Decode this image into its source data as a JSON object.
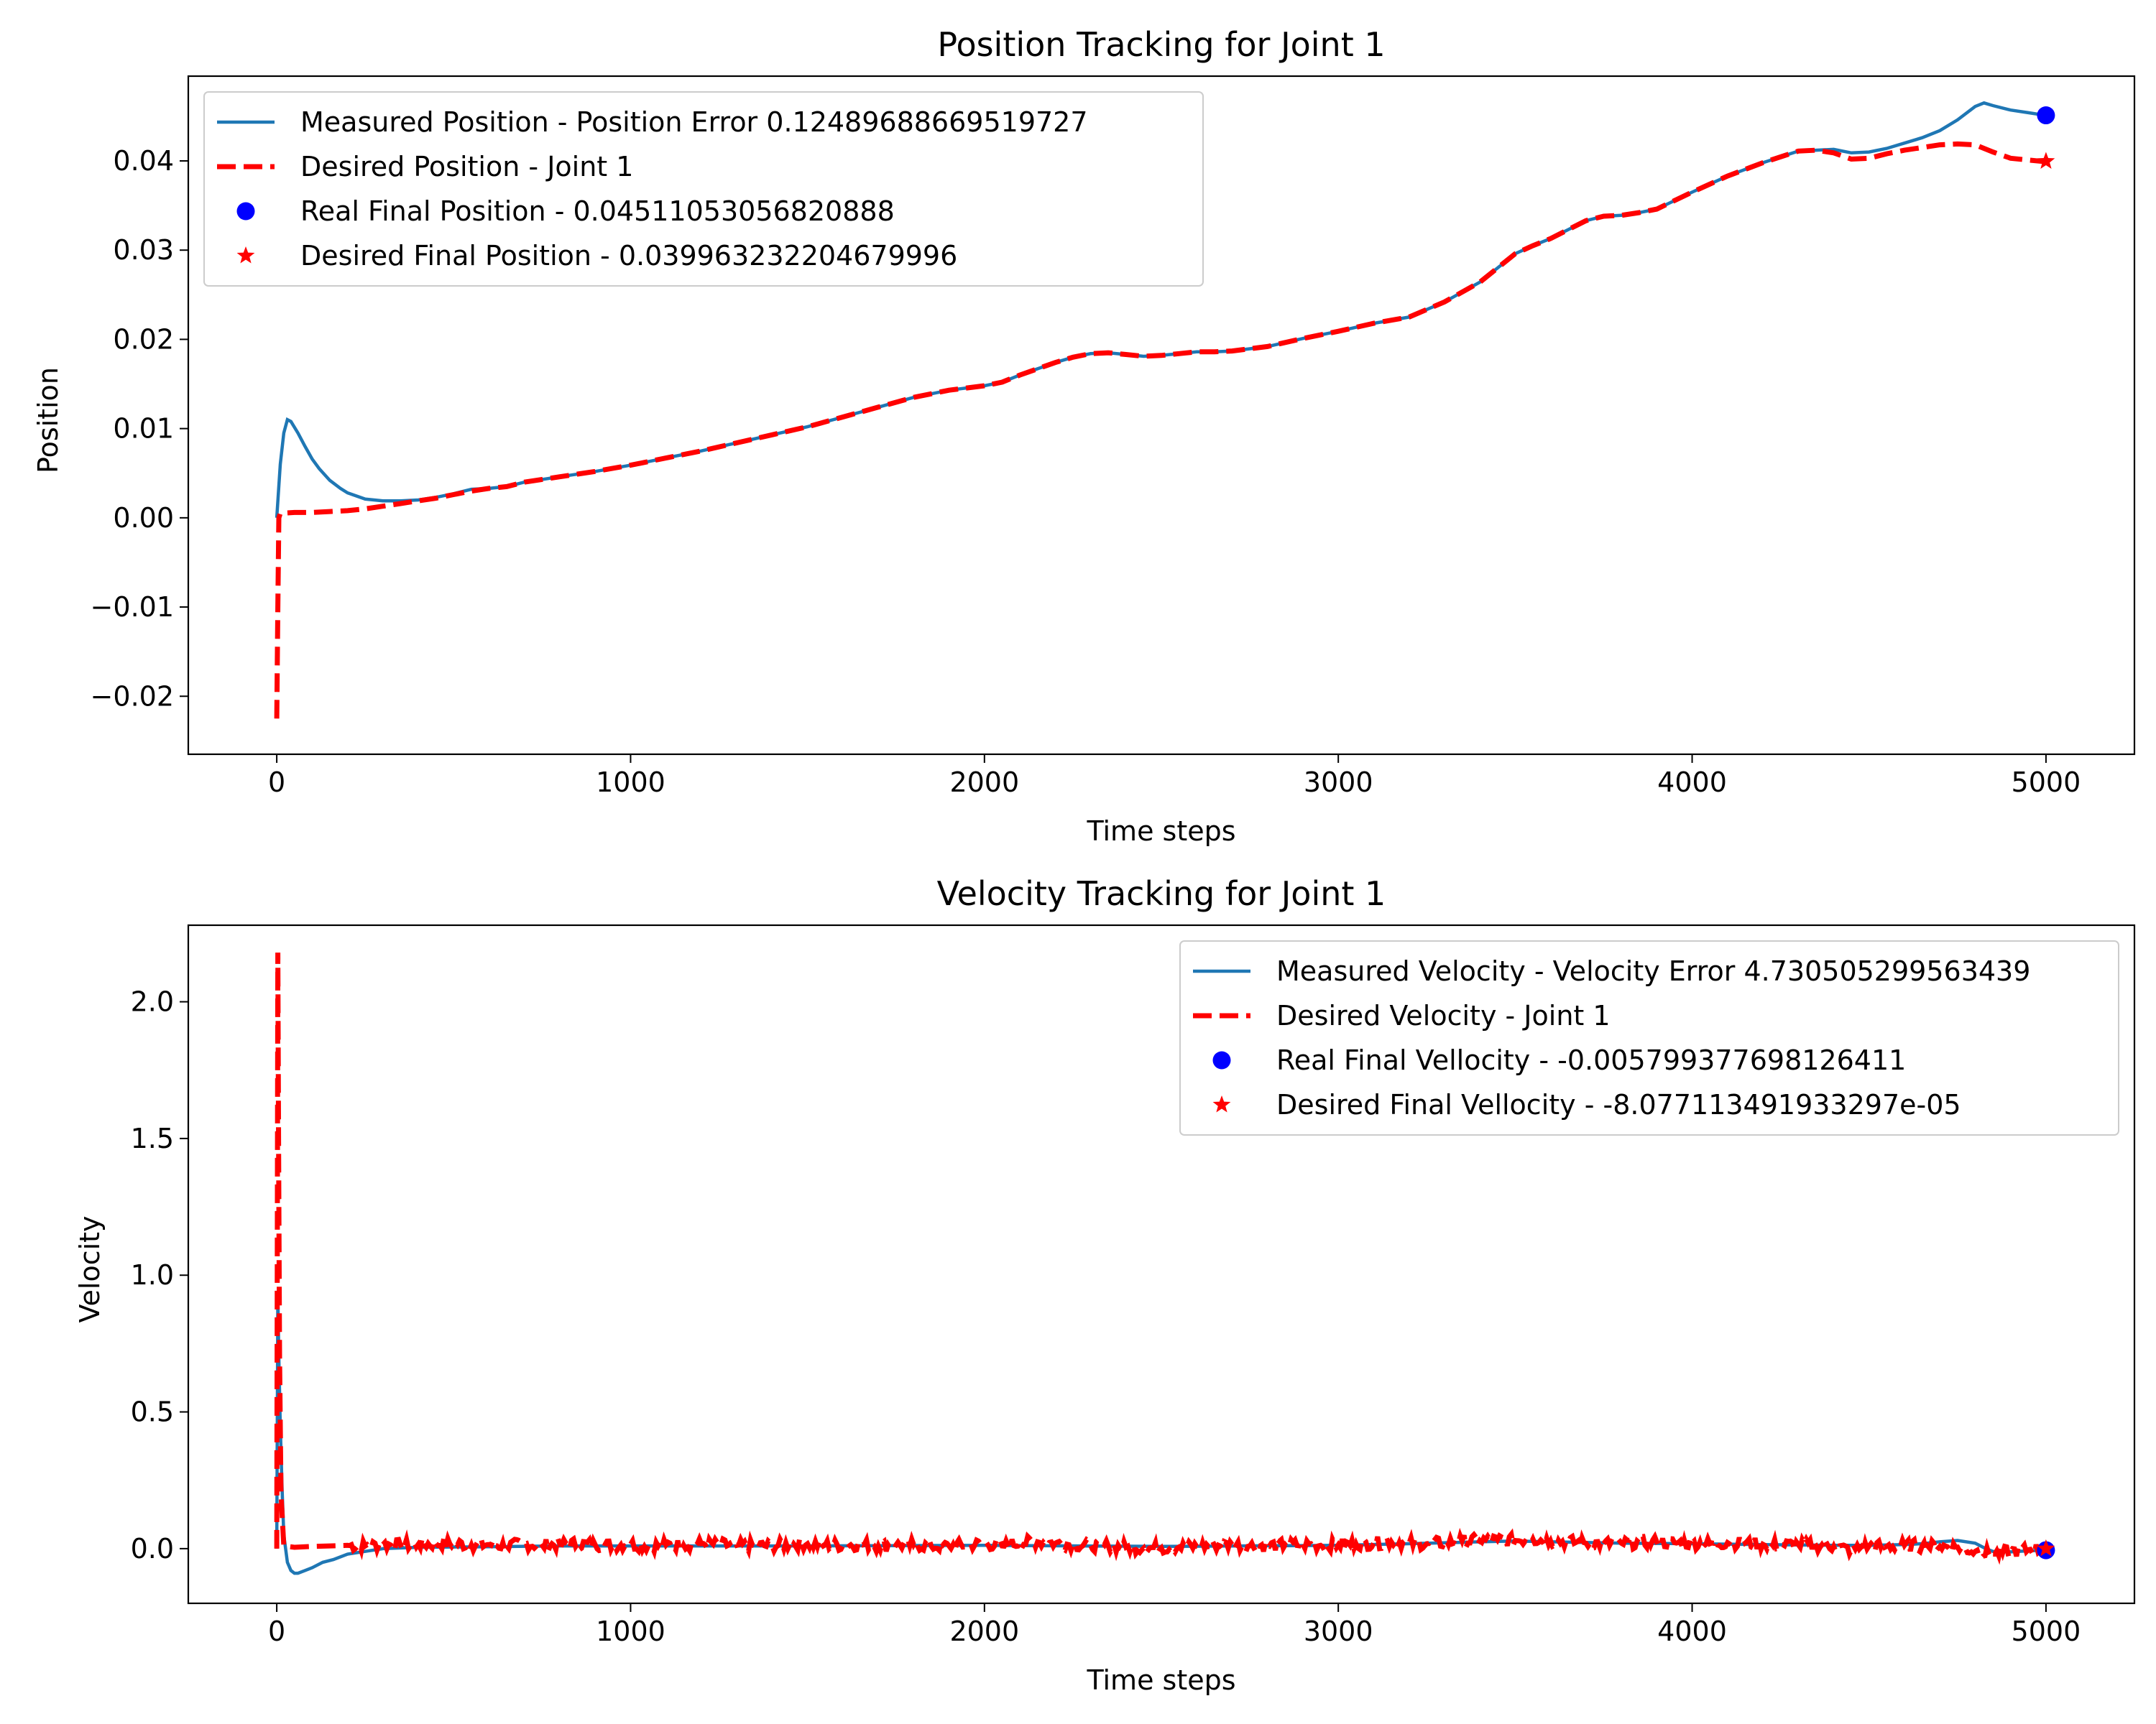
{
  "figure": {
    "colors": {
      "measured": "#1f77b4",
      "desired": "#ff0000",
      "real_final": "#0000ff",
      "desired_final": "#ff0000"
    }
  },
  "chart_data": [
    {
      "type": "line",
      "title": "Position Tracking for Joint 1",
      "xlabel": "Time steps",
      "ylabel": "Position",
      "xlim": [
        -250,
        5250
      ],
      "ylim": [
        -0.0265,
        0.0495
      ],
      "x_ticks": [
        0,
        1000,
        2000,
        3000,
        4000,
        5000
      ],
      "x_tick_labels": [
        "0",
        "1000",
        "2000",
        "3000",
        "4000",
        "5000"
      ],
      "y_ticks": [
        -0.02,
        -0.01,
        0.0,
        0.01,
        0.02,
        0.03,
        0.04
      ],
      "y_tick_labels": [
        "−0.02",
        "−0.01",
        "0.00",
        "0.01",
        "0.02",
        "0.03",
        "0.04"
      ],
      "grid": false,
      "legend_position": "upper left",
      "series": [
        {
          "name": "Measured Position - Position Error 0.12489688669519727",
          "style": "solid",
          "color": "#1f77b4",
          "x": [
            0,
            10,
            20,
            30,
            40,
            60,
            80,
            100,
            120,
            150,
            180,
            200,
            250,
            300,
            350,
            400,
            450,
            500,
            550,
            600,
            650,
            700,
            800,
            900,
            1000,
            1100,
            1200,
            1300,
            1400,
            1500,
            1600,
            1700,
            1800,
            1900,
            2000,
            2050,
            2100,
            2150,
            2200,
            2250,
            2300,
            2350,
            2400,
            2450,
            2500,
            2550,
            2600,
            2650,
            2700,
            2800,
            2900,
            3000,
            3100,
            3200,
            3300,
            3400,
            3450,
            3500,
            3550,
            3600,
            3650,
            3700,
            3750,
            3800,
            3850,
            3900,
            4000,
            4100,
            4200,
            4300,
            4350,
            4400,
            4450,
            4500,
            4550,
            4600,
            4650,
            4700,
            4750,
            4800,
            4825,
            4850,
            4900,
            4950,
            5000
          ],
          "y": [
            0.0,
            0.006,
            0.0095,
            0.011,
            0.0108,
            0.0095,
            0.008,
            0.0066,
            0.0055,
            0.0042,
            0.0033,
            0.0028,
            0.0021,
            0.0019,
            0.0019,
            0.002,
            0.0023,
            0.0027,
            0.0032,
            0.0033,
            0.0035,
            0.004,
            0.0046,
            0.0052,
            0.0059,
            0.0067,
            0.0075,
            0.0084,
            0.0093,
            0.0102,
            0.0113,
            0.0124,
            0.0135,
            0.0143,
            0.0148,
            0.0152,
            0.016,
            0.0167,
            0.0174,
            0.018,
            0.0184,
            0.0185,
            0.0183,
            0.0181,
            0.0182,
            0.0184,
            0.0186,
            0.0186,
            0.0187,
            0.0192,
            0.0201,
            0.0209,
            0.0218,
            0.0225,
            0.0242,
            0.0264,
            0.028,
            0.0296,
            0.0305,
            0.0313,
            0.0323,
            0.0333,
            0.0338,
            0.0339,
            0.0342,
            0.0346,
            0.0365,
            0.0383,
            0.0398,
            0.0411,
            0.0412,
            0.0413,
            0.0409,
            0.041,
            0.0414,
            0.042,
            0.0426,
            0.0434,
            0.0446,
            0.0461,
            0.0465,
            0.0462,
            0.0457,
            0.0454,
            0.0451
          ]
        },
        {
          "name": "Desired Position - Joint 1",
          "style": "dashed",
          "color": "#ff0000",
          "x": [
            0,
            3,
            6,
            10,
            50,
            100,
            150,
            200,
            250,
            300,
            350,
            400,
            450,
            500,
            550,
            600,
            650,
            700,
            800,
            900,
            1000,
            1100,
            1200,
            1300,
            1400,
            1500,
            1600,
            1700,
            1800,
            1900,
            2000,
            2050,
            2100,
            2150,
            2200,
            2250,
            2300,
            2350,
            2400,
            2450,
            2500,
            2550,
            2600,
            2650,
            2700,
            2800,
            2900,
            3000,
            3100,
            3200,
            3300,
            3400,
            3450,
            3500,
            3550,
            3600,
            3650,
            3700,
            3750,
            3800,
            3850,
            3900,
            4000,
            4100,
            4200,
            4300,
            4350,
            4400,
            4450,
            4500,
            4550,
            4600,
            4650,
            4700,
            4750,
            4800,
            4850,
            4900,
            4950,
            5000
          ],
          "y": [
            -0.0225,
            -0.01,
            0.0,
            0.0005,
            0.0006,
            0.0006,
            0.0007,
            0.0008,
            0.001,
            0.0013,
            0.0016,
            0.0019,
            0.0022,
            0.0026,
            0.003,
            0.0033,
            0.0035,
            0.004,
            0.0046,
            0.0052,
            0.0059,
            0.0067,
            0.0075,
            0.0084,
            0.0093,
            0.0102,
            0.0113,
            0.0124,
            0.0135,
            0.0143,
            0.0148,
            0.0152,
            0.016,
            0.0167,
            0.0174,
            0.018,
            0.0184,
            0.0185,
            0.0183,
            0.0181,
            0.0182,
            0.0184,
            0.0186,
            0.0186,
            0.0187,
            0.0192,
            0.0201,
            0.0209,
            0.0218,
            0.0225,
            0.0242,
            0.0264,
            0.028,
            0.0296,
            0.0305,
            0.0313,
            0.0323,
            0.0333,
            0.0338,
            0.0339,
            0.0342,
            0.0346,
            0.0365,
            0.0383,
            0.0398,
            0.0411,
            0.0412,
            0.0409,
            0.0402,
            0.0403,
            0.0408,
            0.0412,
            0.0415,
            0.0418,
            0.0419,
            0.0418,
            0.041,
            0.0403,
            0.0401,
            0.0399
          ]
        }
      ],
      "markers": [
        {
          "name": "Real Final Position - 0.04511053056820888",
          "shape": "circle",
          "color": "#0000ff",
          "x": 5000,
          "y": 0.04511053056820888
        },
        {
          "name": "Desired Final Position - 0.039963232204679996",
          "shape": "star",
          "color": "#ff0000",
          "x": 5000,
          "y": 0.039963232204679996
        }
      ]
    },
    {
      "type": "line",
      "title": "Velocity Tracking for Joint 1",
      "xlabel": "Time steps",
      "ylabel": "Velocity",
      "xlim": [
        -250,
        5250
      ],
      "ylim": [
        -0.2,
        2.28
      ],
      "x_ticks": [
        0,
        1000,
        2000,
        3000,
        4000,
        5000
      ],
      "x_tick_labels": [
        "0",
        "1000",
        "2000",
        "3000",
        "4000",
        "5000"
      ],
      "y_ticks": [
        0.0,
        0.5,
        1.0,
        1.5,
        2.0
      ],
      "y_tick_labels": [
        "0.0",
        "0.5",
        "1.0",
        "1.5",
        "2.0"
      ],
      "grid": false,
      "legend_position": "upper right",
      "series": [
        {
          "name": "Measured Velocity - Velocity Error 4.730505299563439",
          "style": "solid",
          "color": "#1f77b4",
          "x": [
            0,
            3,
            6,
            10,
            15,
            20,
            30,
            40,
            50,
            60,
            80,
            100,
            130,
            160,
            200,
            250,
            300,
            400,
            500,
            600,
            800,
            1000,
            1500,
            2000,
            2500,
            3000,
            3200,
            3400,
            3500,
            3600,
            3800,
            4000,
            4200,
            4400,
            4500,
            4600,
            4650,
            4700,
            4750,
            4800,
            4830,
            4850,
            4900,
            4950,
            5000
          ],
          "y": [
            0.0,
            0.93,
            0.7,
            0.45,
            0.22,
            0.05,
            -0.05,
            -0.08,
            -0.09,
            -0.09,
            -0.08,
            -0.07,
            -0.05,
            -0.04,
            -0.02,
            -0.01,
            0.0,
            0.005,
            0.006,
            0.007,
            0.01,
            0.01,
            0.01,
            0.012,
            0.008,
            0.012,
            0.018,
            0.025,
            0.028,
            0.025,
            0.02,
            0.018,
            0.015,
            0.012,
            0.012,
            0.015,
            0.018,
            0.025,
            0.03,
            0.02,
            0.0,
            -0.01,
            -0.012,
            -0.008,
            -0.0058
          ]
        },
        {
          "name": "Desired Velocity - Joint 1",
          "style": "dashed",
          "color": "#ff0000",
          "noisy_segment_from": 200,
          "x": [
            0,
            3,
            5,
            8,
            12,
            20,
            50,
            100,
            150,
            200,
            250,
            300,
            350,
            400,
            450,
            500,
            550,
            600,
            650,
            700,
            750,
            800,
            850,
            900,
            950,
            1000,
            1050,
            1100,
            1150,
            1200,
            1250,
            1300,
            1350,
            1400,
            1450,
            1500,
            1550,
            1600,
            1650,
            1700,
            1750,
            1800,
            1850,
            1900,
            1950,
            2000,
            2050,
            2100,
            2150,
            2200,
            2250,
            2300,
            2350,
            2400,
            2450,
            2500,
            2550,
            2600,
            2650,
            2700,
            2750,
            2800,
            2850,
            2900,
            2950,
            3000,
            3050,
            3100,
            3150,
            3200,
            3250,
            3300,
            3350,
            3400,
            3450,
            3500,
            3550,
            3600,
            3650,
            3700,
            3750,
            3800,
            3850,
            3900,
            3950,
            4000,
            4050,
            4100,
            4150,
            4200,
            4250,
            4300,
            4350,
            4400,
            4450,
            4500,
            4550,
            4600,
            4650,
            4700,
            4750,
            4800,
            4850,
            4900,
            4950,
            5000
          ],
          "y": [
            0.0,
            2.18,
            1.5,
            0.7,
            0.2,
            0.01,
            0.005,
            0.008,
            0.01,
            0.012,
            0.01,
            0.015,
            0.012,
            0.016,
            0.018,
            0.02,
            0.013,
            0.015,
            0.01,
            0.017,
            0.012,
            0.016,
            0.018,
            0.014,
            0.012,
            0.016,
            0.01,
            0.014,
            0.012,
            0.018,
            0.015,
            0.012,
            0.01,
            0.011,
            0.015,
            0.018,
            0.014,
            0.012,
            0.016,
            0.01,
            0.013,
            0.015,
            0.008,
            0.01,
            0.014,
            0.018,
            0.01,
            0.022,
            0.025,
            0.02,
            0.015,
            0.012,
            0.01,
            0.005,
            0.002,
            0.003,
            0.006,
            0.008,
            0.012,
            0.015,
            0.01,
            0.012,
            0.014,
            0.016,
            0.012,
            0.014,
            0.018,
            0.02,
            0.025,
            0.02,
            0.018,
            0.022,
            0.028,
            0.03,
            0.032,
            0.03,
            0.035,
            0.028,
            0.025,
            0.02,
            0.018,
            0.02,
            0.022,
            0.025,
            0.022,
            0.02,
            0.018,
            0.022,
            0.02,
            0.016,
            0.014,
            0.015,
            0.012,
            0.008,
            -0.005,
            0.01,
            0.008,
            0.012,
            0.01,
            0.008,
            0.006,
            -0.01,
            -0.02,
            -0.01,
            -0.004,
            -0.0001
          ]
        }
      ],
      "markers": [
        {
          "name": "Real Final Vellocity - -0.005799377698126411",
          "shape": "circle",
          "color": "#0000ff",
          "x": 5000,
          "y": -0.005799377698126411
        },
        {
          "name": "Desired Final Vellocity - -8.077113491933297e-05",
          "shape": "star",
          "color": "#ff0000",
          "x": 5000,
          "y": -8.077113491933297e-05
        }
      ]
    }
  ]
}
